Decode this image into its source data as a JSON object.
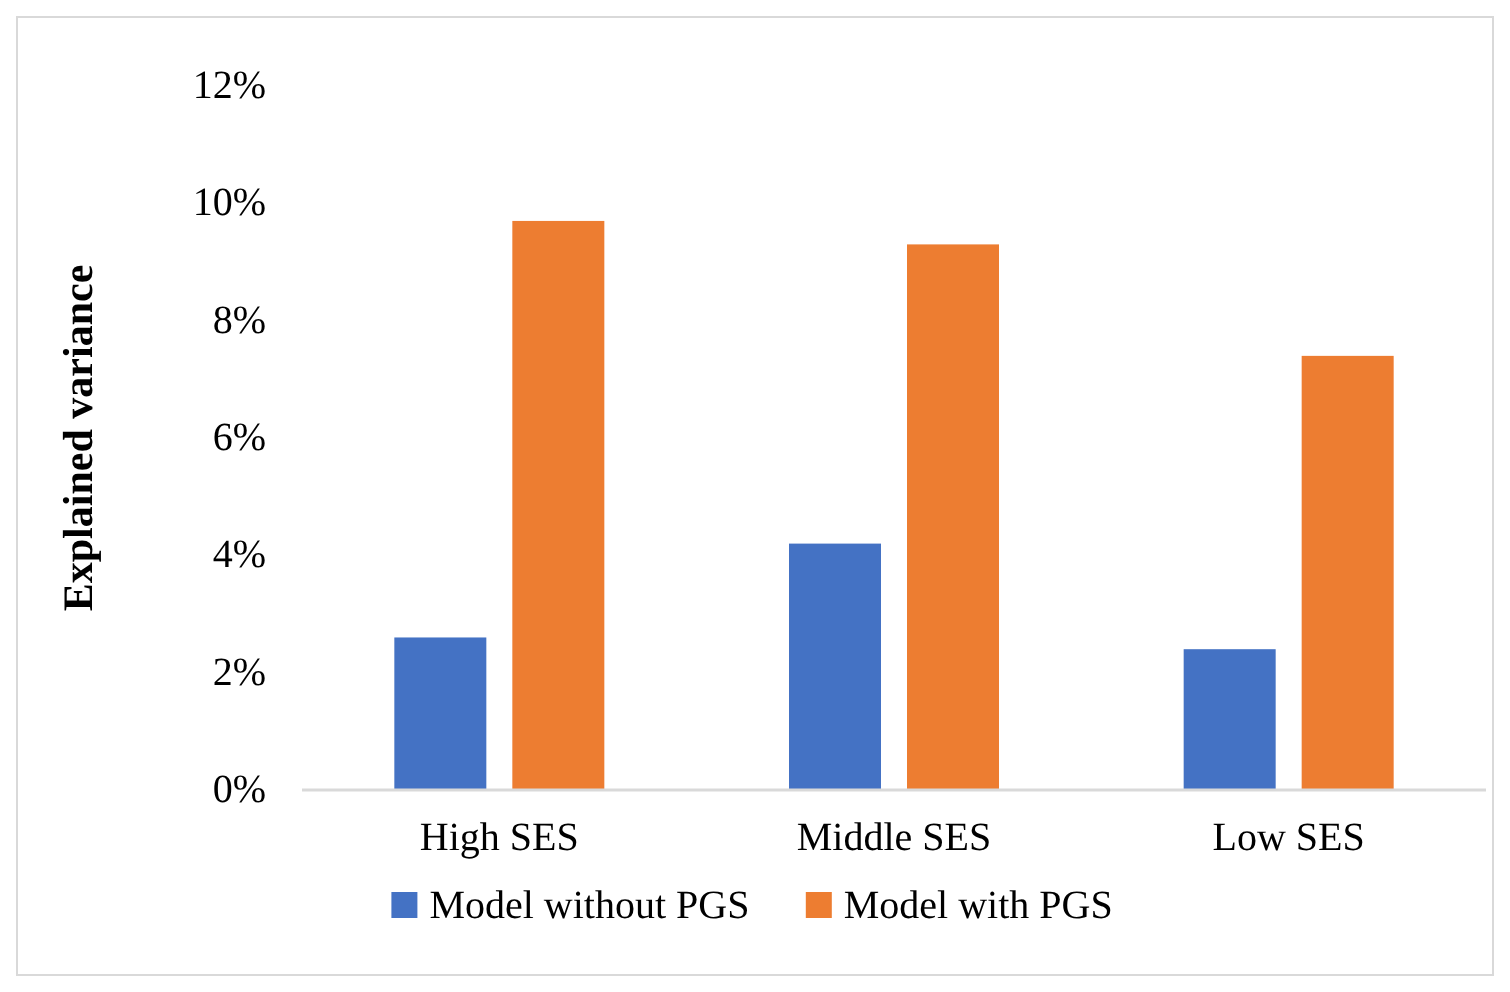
{
  "chart_data": {
    "type": "bar",
    "ylabel": "Explained variance",
    "categories": [
      "High SES",
      "Middle SES",
      "Low SES"
    ],
    "series": [
      {
        "name": "Model without PGS",
        "color": "#4472c4",
        "values": [
          2.6,
          4.2,
          2.4
        ]
      },
      {
        "name": "Model with PGS",
        "color": "#ed7d31",
        "values": [
          9.7,
          9.3,
          7.4
        ]
      }
    ],
    "ylim": [
      0,
      12
    ],
    "yticks": [
      {
        "value": 0,
        "label": "0%"
      },
      {
        "value": 2,
        "label": "2%"
      },
      {
        "value": 4,
        "label": "4%"
      },
      {
        "value": 6,
        "label": "6%"
      },
      {
        "value": 8,
        "label": "8%"
      },
      {
        "value": 10,
        "label": "10%"
      },
      {
        "value": 12,
        "label": "12%"
      }
    ],
    "grid": false,
    "legend": "bottom"
  }
}
